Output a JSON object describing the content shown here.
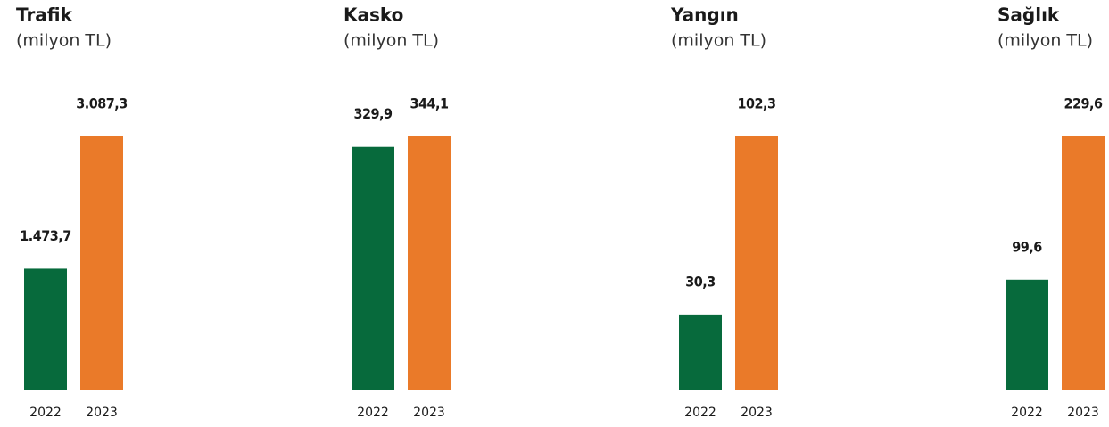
{
  "chart_data": [
    {
      "type": "bar",
      "title": "Trafik",
      "subtitle": "(milyon TL)",
      "categories": [
        "2022",
        "2023"
      ],
      "values": [
        1473.7,
        3087.3
      ],
      "value_labels": [
        "1.473,7",
        "3.087,3"
      ],
      "colors": [
        "#076a3c",
        "#ea7a29"
      ],
      "ylim": [
        0,
        3087.3
      ]
    },
    {
      "type": "bar",
      "title": "Kasko",
      "subtitle": "(milyon TL)",
      "categories": [
        "2022",
        "2023"
      ],
      "values": [
        329.9,
        344.1
      ],
      "value_labels": [
        "329,9",
        "344,1"
      ],
      "colors": [
        "#076a3c",
        "#ea7a29"
      ],
      "ylim": [
        0,
        344.1
      ]
    },
    {
      "type": "bar",
      "title": "Yangın",
      "subtitle": "(milyon TL)",
      "categories": [
        "2022",
        "2023"
      ],
      "values": [
        30.3,
        102.3
      ],
      "value_labels": [
        "30,3",
        "102,3"
      ],
      "colors": [
        "#076a3c",
        "#ea7a29"
      ],
      "ylim": [
        0,
        102.3
      ]
    },
    {
      "type": "bar",
      "title": "Sağlık",
      "subtitle": "(milyon TL)",
      "categories": [
        "2022",
        "2023"
      ],
      "values": [
        99.6,
        229.6
      ],
      "value_labels": [
        "99,6",
        "229,6"
      ],
      "colors": [
        "#076a3c",
        "#ea7a29"
      ],
      "ylim": [
        0,
        229.6
      ]
    }
  ]
}
